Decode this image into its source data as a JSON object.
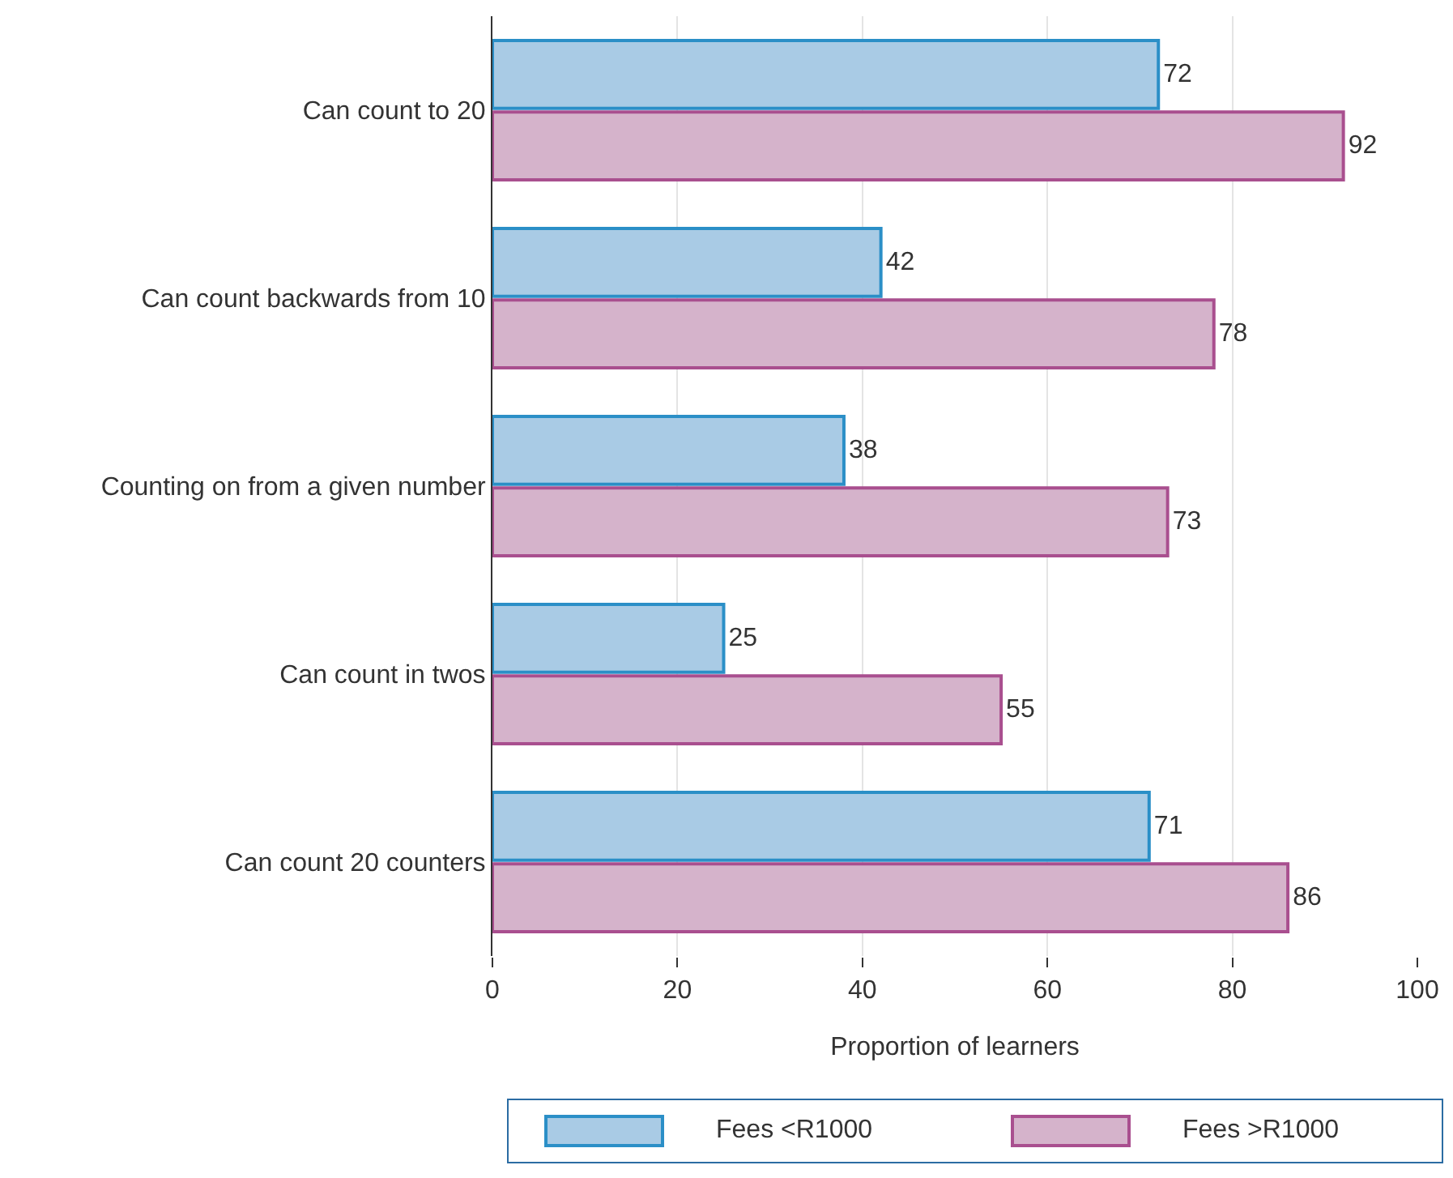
{
  "chart_data": {
    "type": "bar",
    "orientation": "horizontal",
    "xlabel": "Proportion of learners",
    "categories": [
      "Can count to 20",
      "Can count backwards from 10",
      "Counting on from a given number",
      "Can count in twos",
      "Can count 20 counters"
    ],
    "series": [
      {
        "name": "Fees <R1000",
        "color": "#a9cbe5",
        "values": [
          72,
          42,
          38,
          25,
          71
        ]
      },
      {
        "name": "Fees >R1000",
        "color": "#d5b3cb",
        "values": [
          92,
          78,
          73,
          55,
          86
        ]
      }
    ],
    "xlim": [
      0,
      100
    ],
    "xticks": [
      0,
      20,
      40,
      60,
      80,
      100
    ],
    "grid": "x",
    "legend": "bottom",
    "data_labels": true
  }
}
